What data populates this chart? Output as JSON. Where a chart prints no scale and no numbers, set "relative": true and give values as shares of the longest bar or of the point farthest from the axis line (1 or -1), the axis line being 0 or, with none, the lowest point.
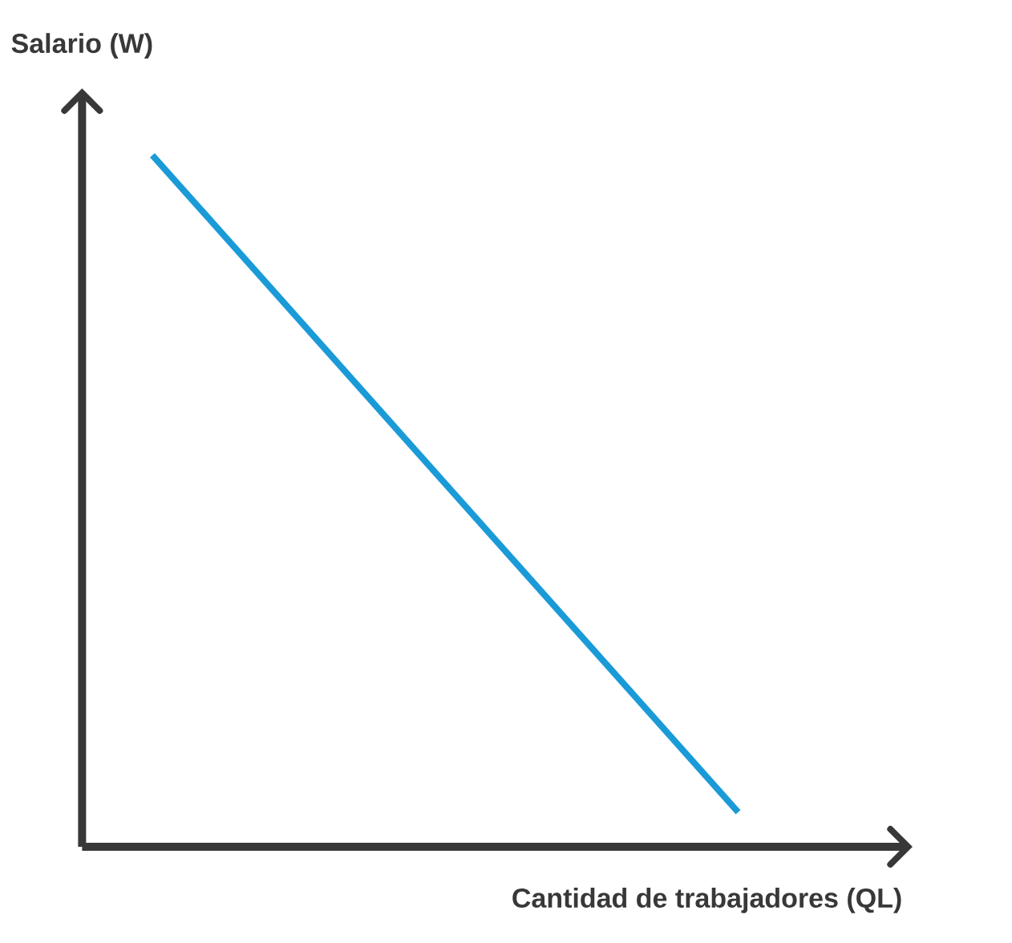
{
  "chart_data": {
    "type": "line",
    "relative": true,
    "xlabel": "Cantidad de trabajadores (QL)",
    "ylabel": "Salario (W)",
    "categories": [
      null,
      null
    ],
    "series": [
      {
        "color": "#1a9bd7",
        "values": [
          1,
          0.05
        ]
      }
    ]
  }
}
